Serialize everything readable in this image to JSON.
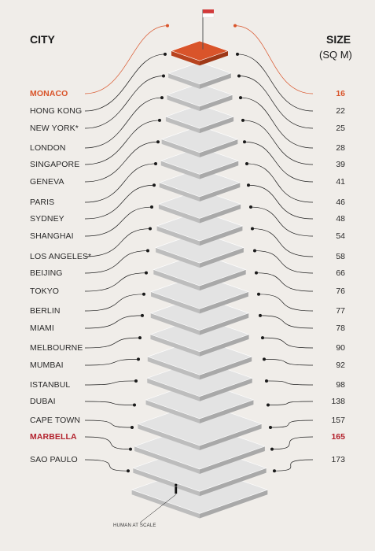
{
  "chart_data": {
    "type": "pictorial",
    "xlabel": "CITY",
    "ylabel": "SIZE",
    "ylabel_unit": "(SQ M)",
    "categories": [
      "MONACO",
      "HONG KONG",
      "NEW YORK*",
      "LONDON",
      "SINGAPORE",
      "GENEVA",
      "PARIS",
      "SYDNEY",
      "SHANGHAI",
      "LOS ANGELES*",
      "BEIJING",
      "TOKYO",
      "BERLIN",
      "MIAMI",
      "MELBOURNE",
      "MUMBAI",
      "ISTANBUL",
      "DUBAI",
      "CAPE TOWN",
      "MARBELLA",
      "SAO PAULO"
    ],
    "values": [
      16,
      22,
      25,
      28,
      39,
      41,
      46,
      48,
      54,
      58,
      66,
      76,
      77,
      78,
      90,
      92,
      98,
      138,
      157,
      165,
      173
    ],
    "highlights": {
      "MONACO": "#d9542a",
      "MARBELLA": "#b3232e"
    },
    "annotation": "HUMAN AT SCALE"
  },
  "colors": {
    "background": "#f0ede9",
    "slab_top": "#e3e3e3",
    "slab_side": "#bdbdbd",
    "monaco": "#d9542a",
    "marbella": "#b3232e",
    "line": "#1a1a1a"
  }
}
